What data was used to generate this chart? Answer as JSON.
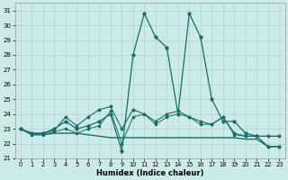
{
  "xlabel": "Humidex (Indice chaleur)",
  "xlim": [
    -0.5,
    23.5
  ],
  "ylim": [
    21,
    31.5
  ],
  "yticks": [
    21,
    22,
    23,
    24,
    25,
    26,
    27,
    28,
    29,
    30,
    31
  ],
  "xticks": [
    0,
    1,
    2,
    3,
    4,
    5,
    6,
    7,
    8,
    9,
    10,
    11,
    12,
    13,
    14,
    15,
    16,
    17,
    18,
    19,
    20,
    21,
    22,
    23
  ],
  "bg_color": "#cceae8",
  "grid_color": "#aed4d2",
  "line_color": "#1a6b6b",
  "line_main": [
    23.0,
    22.7,
    22.7,
    23.0,
    23.5,
    23.0,
    23.2,
    23.5,
    24.0,
    21.5,
    28.0,
    30.8,
    29.2,
    28.5,
    24.0,
    30.8,
    29.2,
    25.0,
    23.5,
    23.5,
    22.7,
    22.5,
    21.8,
    21.8
  ],
  "line_upper": [
    23.0,
    22.7,
    22.7,
    22.9,
    23.8,
    23.2,
    23.8,
    24.3,
    24.5,
    23.0,
    24.3,
    24.0,
    23.5,
    24.0,
    24.2,
    23.8,
    23.5,
    23.3,
    23.8,
    22.7,
    22.5,
    22.5,
    22.5,
    22.5
  ],
  "line_flat": [
    23.0,
    22.6,
    22.6,
    22.7,
    22.7,
    22.7,
    22.6,
    22.5,
    22.4,
    22.4,
    22.4,
    22.4,
    22.4,
    22.4,
    22.4,
    22.4,
    22.4,
    22.4,
    22.4,
    22.4,
    22.3,
    22.3,
    21.8,
    21.8
  ],
  "line_lower": [
    23.0,
    22.6,
    22.6,
    22.8,
    23.0,
    22.7,
    23.0,
    23.2,
    24.2,
    22.0,
    23.8,
    24.0,
    23.3,
    23.8,
    24.0,
    23.8,
    23.3,
    23.3,
    23.8,
    22.6,
    22.5,
    22.5,
    22.5,
    22.5
  ]
}
